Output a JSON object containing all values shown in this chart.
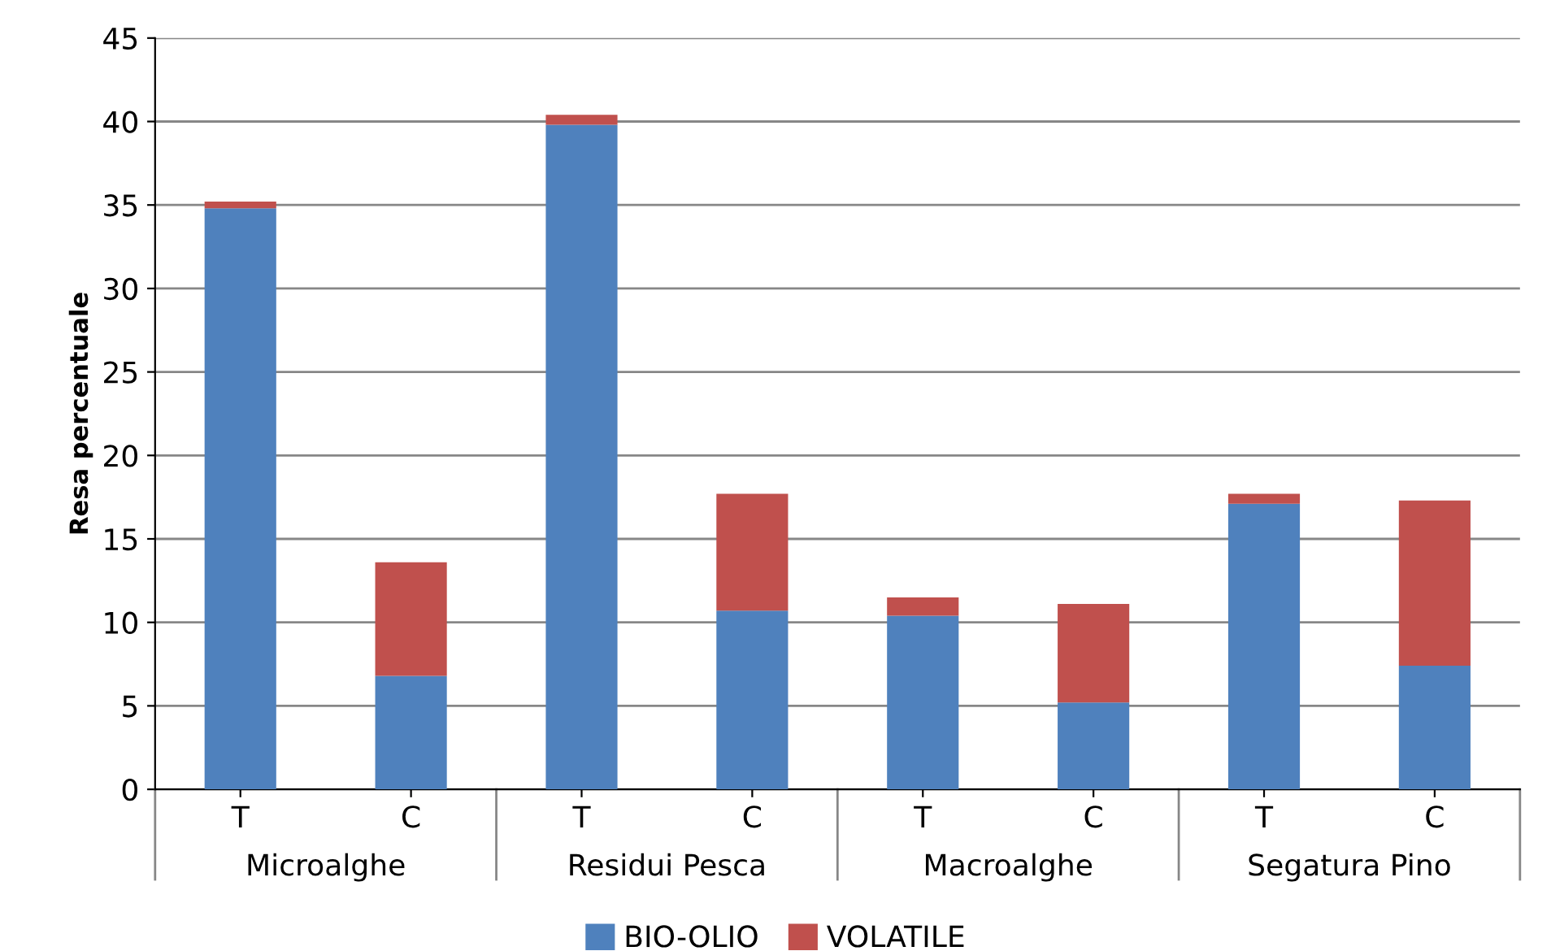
{
  "chart_data": {
    "type": "bar",
    "stacked": true,
    "ylabel": "Resa percentuale",
    "categories": [
      "T",
      "C",
      "T",
      "C",
      "T",
      "C",
      "T",
      "C"
    ],
    "annotations": [
      "Microalghe",
      "Residui Pesca",
      "Macroalghe",
      "Segatura Pino"
    ],
    "series": [
      {
        "name": "BIO-OLIO",
        "color": "#4f81bd",
        "values": [
          34.8,
          6.8,
          39.8,
          10.7,
          10.4,
          5.2,
          17.1,
          7.4
        ]
      },
      {
        "name": "VOLATILE",
        "color": "#c0504d",
        "values": [
          0.4,
          6.8,
          0.6,
          7.0,
          1.1,
          5.9,
          0.6,
          9.9
        ]
      }
    ],
    "ylim": [
      0,
      45
    ],
    "yticks": [
      0,
      5,
      10,
      15,
      20,
      25,
      30,
      35,
      40,
      45
    ],
    "grid": "y",
    "legend": "bottom"
  }
}
